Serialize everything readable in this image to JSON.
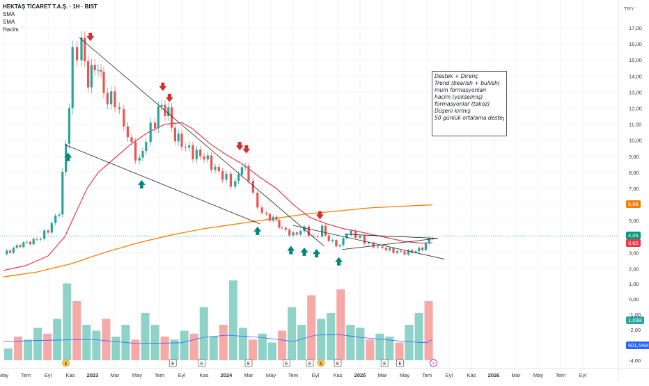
{
  "header": {
    "symbol_title": "HEKTAŞ TİCARET T.A.Ş. · 1H · BIST",
    "indicators": [
      "SMA",
      "SMA",
      "Hacim"
    ],
    "currency": "TRY"
  },
  "annotation_box": {
    "lines": [
      "Destek + Direnç",
      "Trend (bearish + bullish)",
      "mum formasyonları",
      "hacim  (yükselmiş)",
      "formasyonlar (takoz)",
      "Düşeni kırmış",
      "50 günlük ortalama desteği"
    ]
  },
  "price_badges": [
    {
      "label": "5,98",
      "value": 5.98,
      "color": "#f57c00"
    },
    {
      "label": "4,05",
      "value": 4.05,
      "color": "#089981"
    },
    {
      "label": "3,62",
      "value": 3.62,
      "color": "#f23645"
    },
    {
      "label": "1,03B",
      "value": 1.03,
      "color": "#26a69a"
    },
    {
      "label": "501,54M",
      "value": 0.5,
      "color": "#2962ff"
    }
  ],
  "chart_data": {
    "type": "candlestick",
    "price_axis": {
      "ticks": [
        2,
        3,
        4,
        5,
        6,
        7,
        8,
        9,
        10,
        11,
        12,
        13,
        14,
        15,
        16,
        17
      ],
      "tick_labels": [
        "2,00",
        "3,00",
        "4,00",
        "5,00",
        "6,00",
        "7,00",
        "8,00",
        "9,00",
        "10,00",
        "11,00",
        "12,00",
        "13,00",
        "14,00",
        "15,00",
        "16,00",
        "17,00"
      ]
    },
    "volume_axis": {
      "ticks": [
        -4,
        -3,
        -2,
        -1,
        0,
        1
      ],
      "tick_labels": [
        "-4,00",
        "-3,00",
        "-2,00",
        "-1,00",
        "0,00",
        "1,00"
      ]
    },
    "x_axis": {
      "labels": [
        "May",
        "Tem",
        "Eyl",
        "Kas",
        "2023",
        "Mar",
        "May",
        "Tem",
        "Eyl",
        "Kas",
        "2024",
        "Mar",
        "May",
        "Tem",
        "Eyl",
        "Kas",
        "2025",
        "Mar",
        "May",
        "Tem",
        "Eyl",
        "Kas",
        "2026",
        "Mar",
        "May",
        "Tem",
        "Eyl"
      ],
      "label_pos": [
        0,
        2,
        4,
        6,
        8,
        10,
        12,
        14,
        16,
        18,
        20,
        22,
        24,
        26,
        28,
        30,
        32,
        34,
        36,
        38,
        40,
        42,
        44,
        46,
        48,
        50,
        52
      ]
    },
    "close_points": [
      [
        0,
        2.9
      ],
      [
        1.5,
        3.5
      ],
      [
        3,
        3.8
      ],
      [
        4,
        4.4
      ],
      [
        5,
        5.6
      ],
      [
        5.6,
        9.8
      ],
      [
        6.2,
        15.2
      ],
      [
        7,
        15.9
      ],
      [
        7.6,
        13.8
      ],
      [
        8.5,
        14.8
      ],
      [
        9,
        12.8
      ],
      [
        10,
        12.4
      ],
      [
        10.8,
        11
      ],
      [
        11.5,
        9.6
      ],
      [
        12.2,
        8.6
      ],
      [
        12.8,
        10.2
      ],
      [
        13.6,
        11.2
      ],
      [
        14.2,
        12.2
      ],
      [
        14.8,
        11.6
      ],
      [
        15.4,
        10.2
      ],
      [
        16,
        9.8
      ],
      [
        17,
        9.2
      ],
      [
        18,
        9
      ],
      [
        19,
        8.2
      ],
      [
        20,
        7.6
      ],
      [
        20.8,
        7.2
      ],
      [
        21.4,
        8.6
      ],
      [
        22,
        7.6
      ],
      [
        22.8,
        5.8
      ],
      [
        23.6,
        5.3
      ],
      [
        24.5,
        5
      ],
      [
        25,
        4.5
      ],
      [
        26,
        4.1
      ],
      [
        27,
        4.5
      ],
      [
        27.8,
        3.9
      ],
      [
        28.6,
        4.5
      ],
      [
        29.2,
        3.8
      ],
      [
        30.2,
        3.4
      ],
      [
        30.8,
        4.3
      ],
      [
        31.6,
        4.1
      ],
      [
        32.4,
        3.7
      ],
      [
        33.2,
        3.4
      ],
      [
        34,
        3.3
      ],
      [
        35,
        3.1
      ],
      [
        36,
        3
      ],
      [
        37,
        3.1
      ],
      [
        37.6,
        3.3
      ],
      [
        38.2,
        3.8
      ],
      [
        38.5,
        4.05
      ]
    ],
    "sma_red": [
      [
        0,
        1.9
      ],
      [
        2,
        2.2
      ],
      [
        4,
        2.8
      ],
      [
        5.5,
        4
      ],
      [
        6.5,
        5.5
      ],
      [
        7.5,
        7
      ],
      [
        8.5,
        8
      ],
      [
        10,
        8.9
      ],
      [
        11.5,
        9.8
      ],
      [
        13,
        10.5
      ],
      [
        14.5,
        11
      ],
      [
        16,
        11.1
      ],
      [
        17,
        10.7
      ],
      [
        18.5,
        9.8
      ],
      [
        20,
        9.1
      ],
      [
        21.5,
        8.5
      ],
      [
        23,
        7.7
      ],
      [
        24.5,
        7
      ],
      [
        26,
        6
      ],
      [
        27.5,
        5.2
      ],
      [
        29,
        4.8
      ],
      [
        30.5,
        4.5
      ],
      [
        32,
        4.3
      ],
      [
        34,
        4
      ],
      [
        36,
        3.7
      ],
      [
        37.5,
        3.6
      ],
      [
        38.5,
        3.62
      ]
    ],
    "sma_orange": [
      [
        0,
        1.5
      ],
      [
        3,
        1.8
      ],
      [
        6,
        2.3
      ],
      [
        9,
        3
      ],
      [
        12,
        3.6
      ],
      [
        15,
        4.1
      ],
      [
        18,
        4.5
      ],
      [
        21,
        4.8
      ],
      [
        24,
        5.1
      ],
      [
        27,
        5.4
      ],
      [
        30,
        5.6
      ],
      [
        33,
        5.8
      ],
      [
        36,
        5.9
      ],
      [
        38.5,
        5.98
      ]
    ],
    "trendlines": [
      [
        [
          6.8,
          16.4
        ],
        [
          28.8,
          3.4
        ]
      ],
      [
        [
          5.6,
          9.7
        ],
        [
          23,
          4.8
        ]
      ],
      [
        [
          26,
          4.7
        ],
        [
          39.6,
          2.6
        ]
      ],
      [
        [
          30.4,
          3.2
        ],
        [
          39,
          3.9
        ]
      ],
      [
        [
          30.6,
          4.15
        ],
        [
          38.9,
          3.9
        ]
      ]
    ],
    "signals_down": [
      [
        7.8,
        16
      ],
      [
        14.3,
        12.9
      ],
      [
        14.9,
        12.2
      ],
      [
        21.2,
        9.2
      ],
      [
        21.8,
        9
      ],
      [
        28.4,
        4.9
      ]
    ],
    "signals_up": [
      [
        5.8,
        9.4
      ],
      [
        12.4,
        7.7
      ],
      [
        22.8,
        4.8
      ],
      [
        25.8,
        3.6
      ],
      [
        27,
        3.5
      ],
      [
        28.1,
        3.4
      ],
      [
        30.1,
        2.9
      ]
    ],
    "volume_values": [
      0.2,
      0.4,
      0.35,
      0.55,
      0.45,
      0.7,
      1.3,
      1,
      0.6,
      0.5,
      0.7,
      0.4,
      0.6,
      0.35,
      0.8,
      0.6,
      0.4,
      0.35,
      0.5,
      0.45,
      0.9,
      0.4,
      0.6,
      1.35,
      0.55,
      0.35,
      0.45,
      0.3,
      0.5,
      0.9,
      0.6,
      1.1,
      0.7,
      0.8,
      1.2,
      0.6,
      0.55,
      0.35,
      0.45,
      0.4,
      0.3,
      0.6,
      0.8,
      1.0
    ],
    "volume_ma": [
      [
        0,
        0.45
      ],
      [
        4,
        0.48
      ],
      [
        8,
        0.5
      ],
      [
        12,
        0.4
      ],
      [
        16,
        0.42
      ],
      [
        18,
        0.55
      ],
      [
        20,
        0.6
      ],
      [
        23,
        0.55
      ],
      [
        26,
        0.45
      ],
      [
        28,
        0.6
      ],
      [
        30,
        0.62
      ],
      [
        32,
        0.55
      ],
      [
        34,
        0.5
      ],
      [
        36,
        0.45
      ],
      [
        38,
        0.42
      ],
      [
        38.5,
        0.5
      ]
    ],
    "event_markers": [
      {
        "x": 5.6,
        "label": "$"
      },
      {
        "x": 15.2,
        "label": "E"
      },
      {
        "x": 17.8,
        "label": "E"
      },
      {
        "x": 22,
        "label": "E"
      },
      {
        "x": 25.4,
        "label": "E"
      },
      {
        "x": 27.5,
        "label": "E"
      },
      {
        "x": 28.5,
        "label": "$"
      },
      {
        "x": 30,
        "label": "E"
      },
      {
        "x": 34.2,
        "label": "E"
      },
      {
        "x": 35.6,
        "label": "E"
      },
      {
        "x": 38.6,
        "label": "⚡"
      }
    ]
  }
}
